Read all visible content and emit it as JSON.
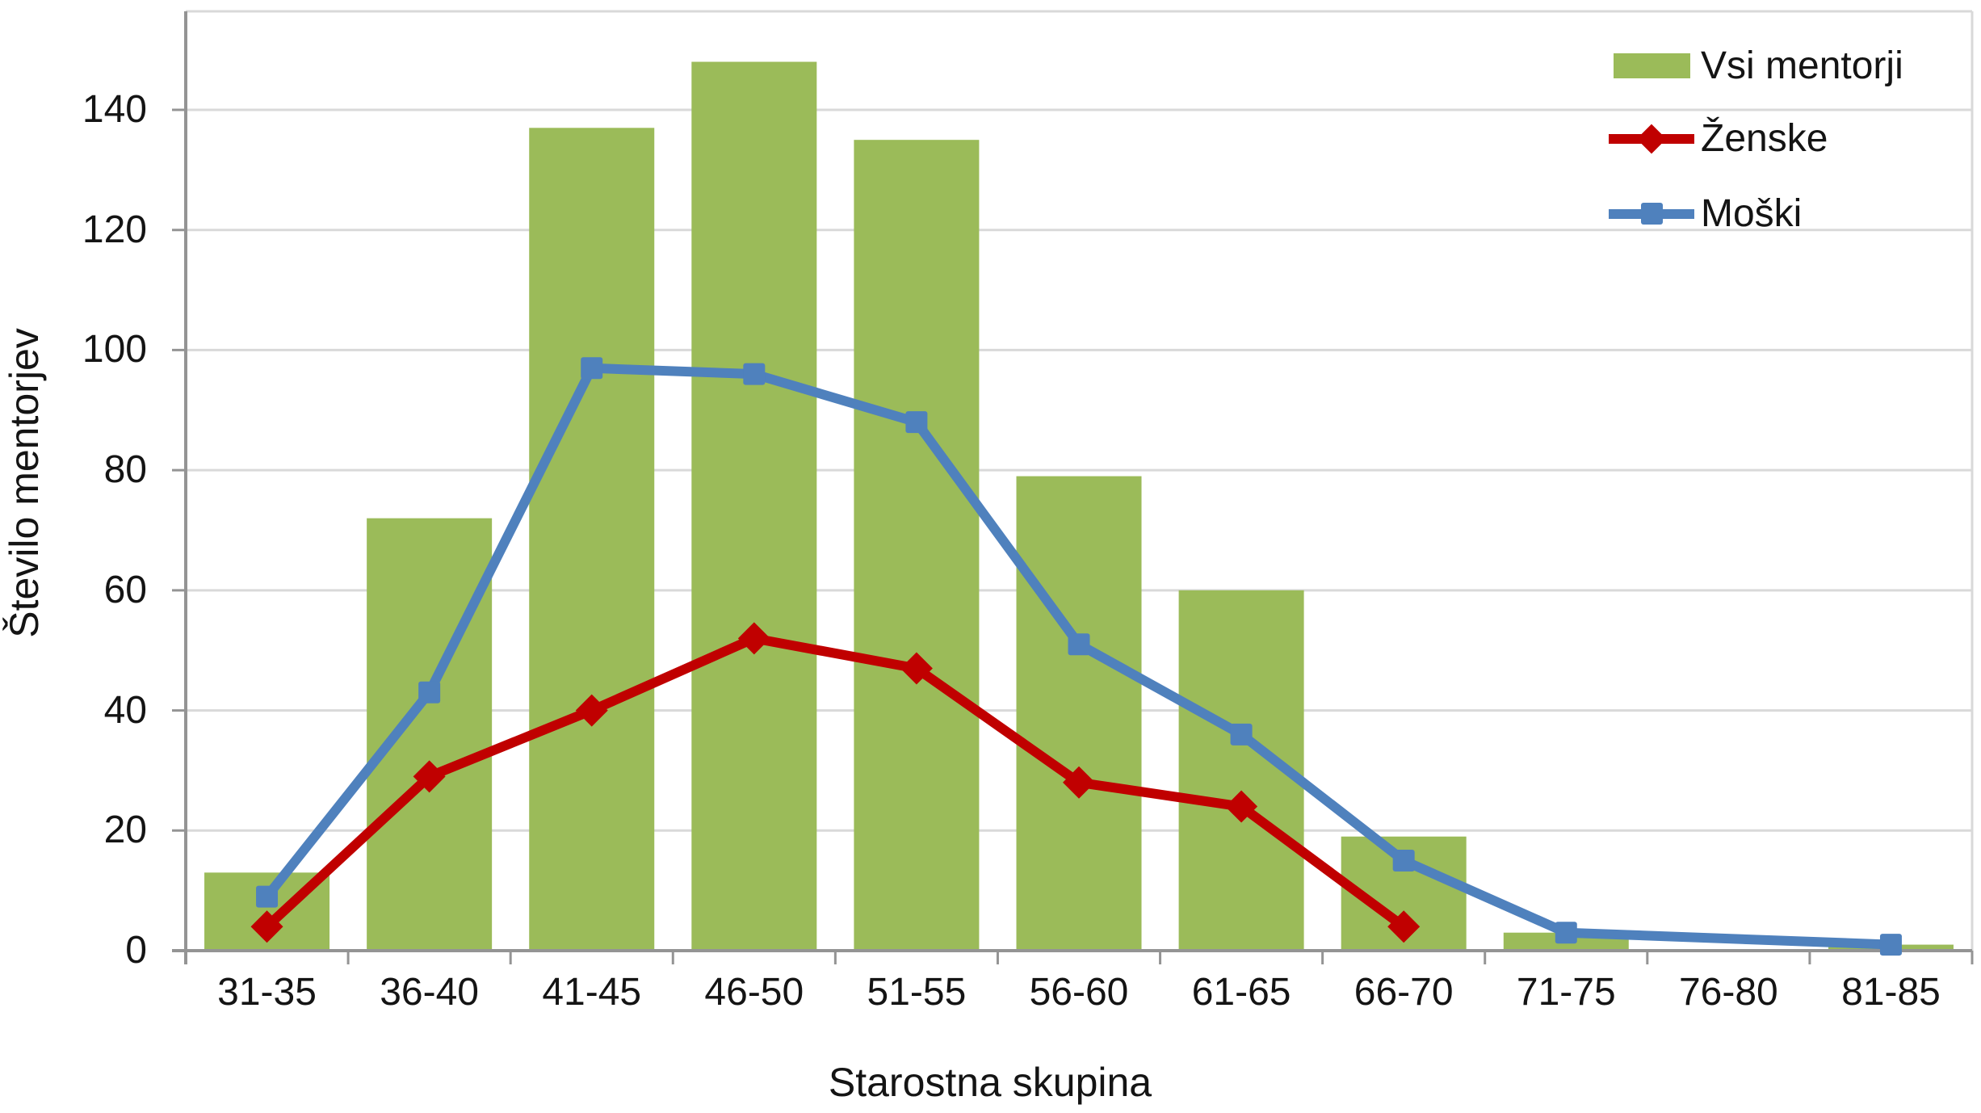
{
  "chart_data": {
    "type": "combo",
    "categories": [
      "31-35",
      "36-40",
      "41-45",
      "46-50",
      "51-55",
      "56-60",
      "61-65",
      "66-70",
      "71-75",
      "76-80",
      "81-85"
    ],
    "series": [
      {
        "name": "Vsi mentorji",
        "type": "bar",
        "marker": "none",
        "color": "#9BBB59",
        "values": [
          13,
          72,
          137,
          148,
          135,
          79,
          60,
          19,
          3,
          0,
          1
        ]
      },
      {
        "name": "Ženske",
        "type": "line",
        "marker": "diamond",
        "color": "#C00000",
        "values": [
          4,
          29,
          40,
          52,
          47,
          28,
          24,
          4,
          null,
          null,
          null
        ]
      },
      {
        "name": "Moški",
        "type": "line",
        "marker": "square",
        "color": "#4F81BD",
        "values": [
          9,
          43,
          97,
          96,
          88,
          51,
          36,
          15,
          3,
          null,
          1
        ]
      }
    ],
    "xlabel": "Starostna skupina",
    "ylabel": "Število mentorjev",
    "y_ticks": [
      0,
      20,
      40,
      60,
      80,
      100,
      120,
      140
    ],
    "ylim": [
      0,
      156
    ],
    "grid": true,
    "legend_position": "top-right",
    "colors": {
      "gridline": "#D9D9D9",
      "axis": "#949494",
      "text": "#141414",
      "background": "#FFFFFF"
    }
  }
}
